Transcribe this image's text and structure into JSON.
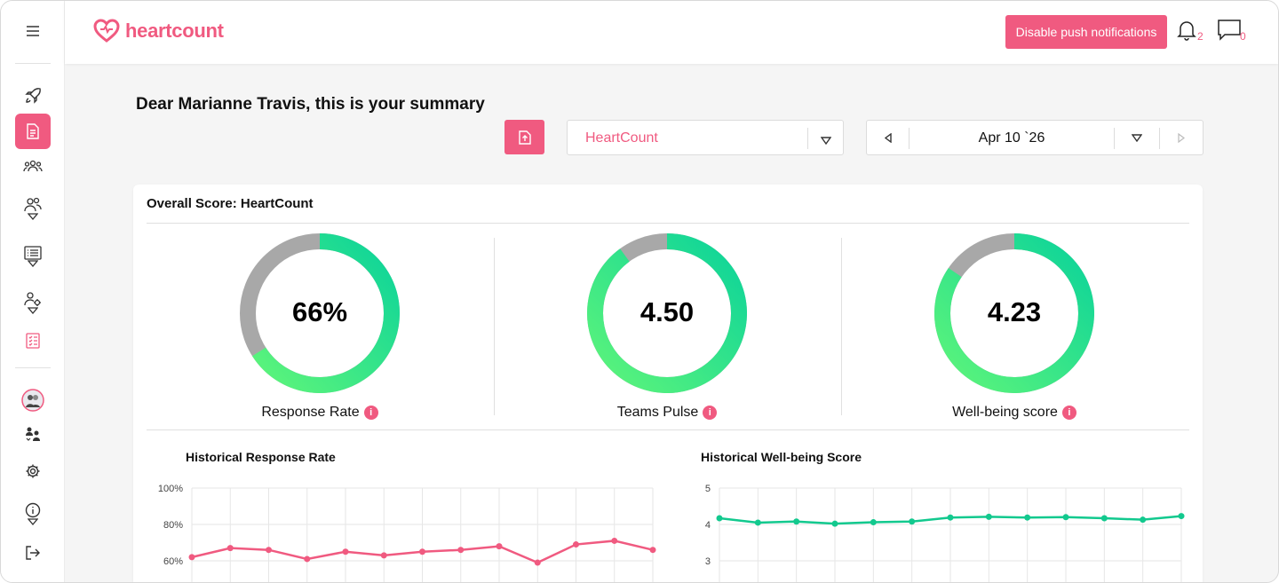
{
  "brand": {
    "name": "heartcount",
    "accent": "#f05a80",
    "green": "#12c98e"
  },
  "sidebar": {
    "items": [
      {
        "icon": "menu-icon"
      },
      {
        "icon": "rocket-icon"
      },
      {
        "icon": "document-icon",
        "active": true
      },
      {
        "icon": "team-icon"
      },
      {
        "icon": "users-icon"
      },
      {
        "icon": "survey-list-icon"
      },
      {
        "icon": "user-settings-icon"
      },
      {
        "icon": "checklist-icon"
      },
      {
        "icon": "avatar"
      },
      {
        "icon": "user-switch-icon"
      },
      {
        "icon": "settings-icon"
      },
      {
        "icon": "info-icon"
      },
      {
        "icon": "logout-icon"
      }
    ]
  },
  "header": {
    "push_button": "Disable push notifications",
    "notifications_count": "2",
    "messages_count": "0"
  },
  "greeting": "Dear Marianne Travis, this is your summary",
  "filters": {
    "organization": "HeartCount",
    "date": "Apr 10 `26"
  },
  "overview": {
    "title": "Overall Score: HeartCount",
    "gauges": [
      {
        "label": "Response Rate",
        "display": "66%",
        "fraction": 0.66
      },
      {
        "label": "Teams Pulse",
        "display": "4.50",
        "fraction": 0.9
      },
      {
        "label": "Well-being score",
        "display": "4.23",
        "fraction": 0.846
      }
    ]
  },
  "chart_data": [
    {
      "type": "line",
      "title": "Historical Response Rate",
      "y_ticks": [
        "100%",
        "80%",
        "60%"
      ],
      "ylim": [
        50,
        100
      ],
      "color": "#f05a80",
      "series": [
        {
          "values": [
            62,
            67,
            66,
            61,
            65,
            63,
            65,
            66,
            68,
            59,
            69,
            71,
            66
          ]
        }
      ]
    },
    {
      "type": "line",
      "title": "Historical Well-being Score",
      "y_ticks": [
        "5",
        "4",
        "3"
      ],
      "ylim": [
        2.5,
        5
      ],
      "color": "#12c98e",
      "series": [
        {
          "values": [
            4.17,
            4.05,
            4.08,
            4.02,
            4.06,
            4.08,
            4.19,
            4.21,
            4.19,
            4.2,
            4.17,
            4.13,
            4.23
          ]
        }
      ]
    }
  ]
}
